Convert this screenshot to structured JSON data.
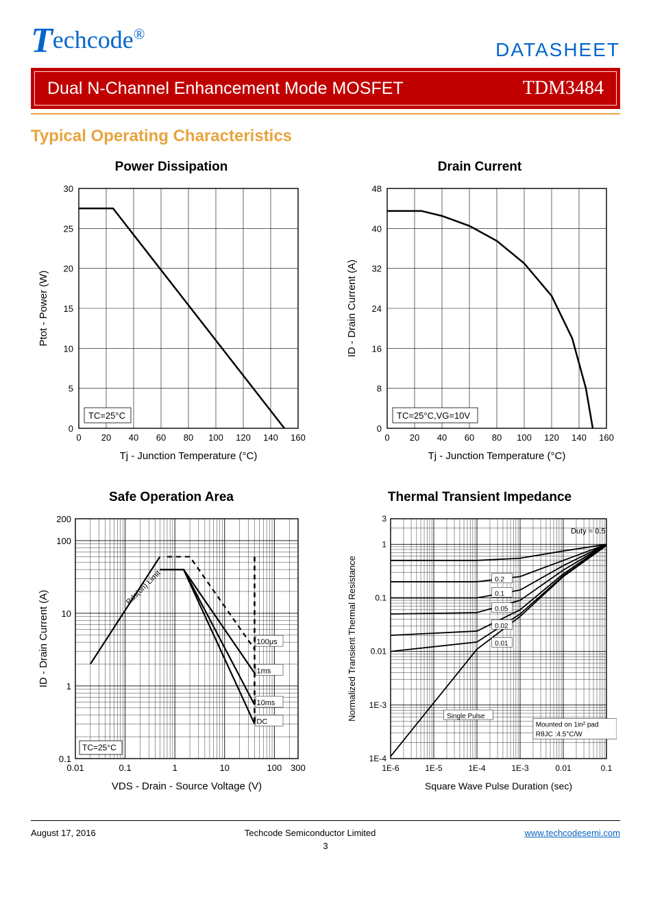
{
  "header": {
    "logo_text": "echcode",
    "logo_reg": "®",
    "datasheet_label": "DATASHEET"
  },
  "title_bar": {
    "title": "Dual N-Channel Enhancement Mode MOSFET",
    "part_number": "TDM3484"
  },
  "section_title": "Typical Operating Characteristics",
  "charts": {
    "power_dissipation": {
      "type": "line",
      "title": "Power Dissipation",
      "xlabel": "Tj - Junction Temperature (°C)",
      "ylabel": "Ptot - Power (W)",
      "xlim": [
        0,
        160
      ],
      "ylim": [
        0,
        30
      ],
      "xtick_step": 20,
      "ytick_step": 5,
      "annotation": "TC=25°C",
      "line_color": "#000000",
      "line_width": 2.5,
      "grid_color": "#000000",
      "background_color": "#ffffff",
      "data": [
        [
          0,
          27.5
        ],
        [
          25,
          27.5
        ],
        [
          150,
          0
        ]
      ]
    },
    "drain_current": {
      "type": "line",
      "title": "Drain Current",
      "xlabel": "Tj - Junction Temperature (°C)",
      "ylabel": "ID - Drain Current (A)",
      "xlim": [
        0,
        160
      ],
      "ylim": [
        0,
        48
      ],
      "xtick_step": 20,
      "ytick_step": 8,
      "annotation": "TC=25°C,VG=10V",
      "line_color": "#000000",
      "line_width": 2.5,
      "grid_color": "#000000",
      "background_color": "#ffffff",
      "data": [
        [
          0,
          43.5
        ],
        [
          25,
          43.5
        ],
        [
          40,
          42.5
        ],
        [
          60,
          40.5
        ],
        [
          80,
          37.5
        ],
        [
          100,
          33
        ],
        [
          120,
          26.5
        ],
        [
          135,
          18
        ],
        [
          145,
          8
        ],
        [
          150,
          0
        ]
      ]
    },
    "soa": {
      "type": "loglog",
      "title": "Safe Operation Area",
      "xlabel": "VDS - Drain - Source Voltage (V)",
      "ylabel": "ID - Drain Current (A)",
      "xlim": [
        0.01,
        300
      ],
      "ylim": [
        0.1,
        200
      ],
      "xticks": [
        0.01,
        0.1,
        1,
        10,
        100,
        300
      ],
      "yticks": [
        0.1,
        1,
        10,
        100,
        200
      ],
      "annotation": "TC=25°C",
      "rds_label": "Rds(on) Limit",
      "line_color": "#000000",
      "line_width": 2,
      "grid_color": "#000000",
      "background_color": "#ffffff",
      "dashed_vline_x": 40,
      "curves": {
        "100us": {
          "label": "100μs",
          "data": [
            [
              0.7,
              60
            ],
            [
              2,
              60
            ],
            [
              40,
              3.2
            ]
          ]
        },
        "1ms": {
          "label": "1ms",
          "data": [
            [
              0.5,
              40
            ],
            [
              1.5,
              40
            ],
            [
              40,
              1.5
            ]
          ]
        },
        "10ms": {
          "label": "10ms",
          "data": [
            [
              0.5,
              40
            ],
            [
              1.5,
              40
            ],
            [
              40,
              0.55
            ]
          ]
        },
        "dc": {
          "label": "DC",
          "data": [
            [
              0.5,
              40
            ],
            [
              1.5,
              40
            ],
            [
              40,
              0.3
            ]
          ]
        },
        "rise": {
          "data": [
            [
              0.02,
              2
            ],
            [
              0.5,
              60
            ]
          ]
        }
      }
    },
    "thermal": {
      "type": "semilogx",
      "title": "Thermal Transient Impedance",
      "xlabel": "Square Wave Pulse Duration (sec)",
      "ylabel": "Normalized Transient Thermal Resistance",
      "xlim": [
        1e-06,
        0.1
      ],
      "ylim": [
        0.0001,
        3
      ],
      "xticks": [
        "1E-6",
        "1E-5",
        "1E-4",
        "1E-3",
        "0.01",
        "0.1"
      ],
      "yticks": [
        "1E-4",
        "1E-3",
        "0.01",
        "0.1",
        "1",
        "3"
      ],
      "line_color": "#000000",
      "line_width": 1.8,
      "grid_color": "#000000",
      "background_color": "#ffffff",
      "note1": "Mounted on 1in² pad",
      "note2": "RθJC :4.5°C/W",
      "duty_label": "Duty = 0.5",
      "single_pulse_label": "Single Pulse",
      "curves": {
        "d05": {
          "label": "0.5",
          "data": [
            [
              1e-06,
              0.5
            ],
            [
              0.0001,
              0.5
            ],
            [
              0.001,
              0.55
            ],
            [
              0.01,
              0.75
            ],
            [
              0.1,
              1
            ]
          ]
        },
        "d02": {
          "label": "0.2",
          "data": [
            [
              1e-06,
              0.2
            ],
            [
              0.0001,
              0.2
            ],
            [
              0.001,
              0.25
            ],
            [
              0.01,
              0.5
            ],
            [
              0.1,
              1
            ]
          ]
        },
        "d01": {
          "label": "0.1",
          "data": [
            [
              1e-06,
              0.1
            ],
            [
              0.0001,
              0.1
            ],
            [
              0.001,
              0.14
            ],
            [
              0.01,
              0.4
            ],
            [
              0.1,
              1
            ]
          ]
        },
        "d005": {
          "label": "0.05",
          "data": [
            [
              1e-06,
              0.05
            ],
            [
              0.0001,
              0.053
            ],
            [
              0.001,
              0.09
            ],
            [
              0.01,
              0.33
            ],
            [
              0.1,
              1
            ]
          ]
        },
        "d002": {
          "label": "0.02",
          "data": [
            [
              1e-06,
              0.02
            ],
            [
              0.0001,
              0.024
            ],
            [
              0.001,
              0.06
            ],
            [
              0.01,
              0.28
            ],
            [
              0.1,
              1
            ]
          ]
        },
        "d001": {
          "label": "0.01",
          "data": [
            [
              1e-06,
              0.01
            ],
            [
              0.0001,
              0.015
            ],
            [
              0.001,
              0.05
            ],
            [
              0.01,
              0.26
            ],
            [
              0.1,
              0.95
            ]
          ]
        },
        "single": {
          "data": [
            [
              1e-06,
              0.00011
            ],
            [
              1e-05,
              0.0011
            ],
            [
              0.0001,
              0.011
            ],
            [
              0.001,
              0.045
            ],
            [
              0.01,
              0.25
            ],
            [
              0.1,
              0.95
            ]
          ]
        }
      }
    }
  },
  "footer": {
    "date": "August  17,  2016",
    "company": "Techcode  Semiconductor  Limited",
    "url_text": "www.techcodesemi.com",
    "page": "3"
  }
}
